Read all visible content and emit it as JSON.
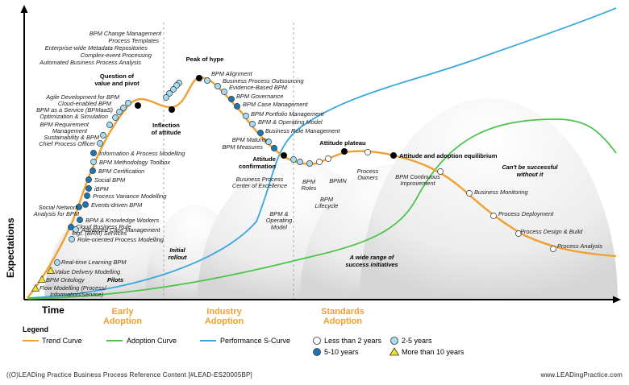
{
  "axes": {
    "y_label": "Expectations",
    "x_label": "Time"
  },
  "phases": [
    {
      "name": "phase-early",
      "lines": [
        "Early",
        "Adoption"
      ]
    },
    {
      "name": "phase-industry",
      "lines": [
        "Industry",
        "Adoption"
      ]
    },
    {
      "name": "phase-standards",
      "lines": [
        "Standards",
        "Adoption"
      ]
    }
  ],
  "milestones": {
    "question": [
      "Question of",
      "value and pivot"
    ],
    "inflection": [
      "Inflection",
      "of attitude"
    ],
    "peak": [
      "Peak of hype"
    ],
    "confirmation": [
      "Attitude",
      "confirmation"
    ],
    "plateau": [
      "Attitude plateau"
    ],
    "equilibrium": [
      "Attitude and adoption equilibrium"
    ]
  },
  "areas": {
    "pilots": [
      "Pilots"
    ],
    "initial": [
      "Initial",
      "rollout"
    ],
    "range": [
      "A wide range of",
      "success initiatives"
    ],
    "cant": [
      "Can't be successful",
      "without it"
    ]
  },
  "items_left": [
    {
      "text": "BPM Change Management",
      "m": "mid"
    },
    {
      "text": "Process Templates",
      "m": "mid"
    },
    {
      "text": "Enterprise-wide Metadata Repositories",
      "m": "mid"
    },
    {
      "text": "Complex-event Processing",
      "m": "mid"
    },
    {
      "text": "Automated Business Process Analysis",
      "m": "mid"
    },
    {
      "text": "Agile Development for BPM",
      "m": "mid"
    },
    {
      "text": "Cloud-enabled BPM",
      "m": "mid"
    },
    {
      "text": "BPM as a Service (BPMaaS)",
      "m": "mid"
    },
    {
      "text": "Optimization & Simulation",
      "m": "mid"
    },
    {
      "text": "BPM Requirement",
      "m": "mid"
    },
    {
      "text": "Management",
      "m": "mid"
    },
    {
      "text": "Sustainability & BPM",
      "m": "mid"
    },
    {
      "text": "Chief Process Officer",
      "m": "mid"
    },
    {
      "text": "Social Network",
      "m": "long"
    },
    {
      "text": "Analysis for BPM",
      "m": "long"
    },
    {
      "text": "Cloud Business Rule",
      "m": "long"
    },
    {
      "text": "Mgt. (BRM) Services",
      "m": "long"
    },
    {
      "text": "Real-time Learning BPM",
      "m": "mid"
    },
    {
      "text": "Value Delivery Modelling",
      "m": "old"
    },
    {
      "text": "BPM Ontology",
      "m": "old"
    },
    {
      "text": "Flow Modelling (Process/",
      "m": "old"
    },
    {
      "text": "Information/Service)",
      "m": "old"
    }
  ],
  "items_right": [
    {
      "text": "Information & Process Modelling",
      "m": "long"
    },
    {
      "text": "BPM Methodology Toolbox",
      "m": "mid"
    },
    {
      "text": "BPM Certification",
      "m": "long"
    },
    {
      "text": "Social BPM",
      "m": "long"
    },
    {
      "text": "iBPM",
      "m": "long"
    },
    {
      "text": "Process Variance Modelling",
      "m": "long"
    },
    {
      "text": "Events-driven BPM",
      "m": "long"
    },
    {
      "text": "BPM & Knowledge Workers",
      "m": "long"
    },
    {
      "text": "Advanced Case Management",
      "m": "mid"
    },
    {
      "text": "Role-oriented Process Modelling",
      "m": "mid"
    }
  ],
  "items_descent": [
    {
      "text": "BPM Alignment",
      "m": "mid"
    },
    {
      "text": "Business Process Outsourcing",
      "m": "mid"
    },
    {
      "text": "Evidence-Based BPM",
      "m": "mid"
    },
    {
      "text": "BPM Governance",
      "m": "long"
    },
    {
      "text": "BPM Case Management",
      "m": "long"
    },
    {
      "text": "BPM Portfolio Management",
      "m": "mid"
    },
    {
      "text": "BPM & Operating Model",
      "m": "mid"
    },
    {
      "text": "Business Rule Management",
      "m": "long"
    },
    {
      "text": "BPM Maturity",
      "m": "mid"
    },
    {
      "text": "BPM Measures",
      "m": "long"
    }
  ],
  "items_bottom": [
    {
      "lines": [
        "Business Process",
        "Center of Excellence"
      ],
      "m": "mid"
    },
    {
      "lines": [
        "BPM &",
        "Operating",
        "Model"
      ],
      "m": "mid"
    },
    {
      "lines": [
        "BPM",
        "Roles"
      ],
      "m": "mid"
    },
    {
      "lines": [
        "BPM",
        "Lifecycle"
      ],
      "m": "new"
    },
    {
      "lines": [
        "BPMN"
      ],
      "m": "new"
    },
    {
      "lines": [
        "Process",
        "Owners"
      ],
      "m": "new"
    }
  ],
  "items_tail": [
    {
      "lines": [
        "BPM Continuous",
        "Improvement"
      ],
      "m": "new"
    },
    {
      "lines": [
        "Business Monitoring"
      ],
      "m": "new"
    },
    {
      "lines": [
        "Process Deployment"
      ],
      "m": "new"
    },
    {
      "lines": [
        "Process Design & Build"
      ],
      "m": "new"
    },
    {
      "lines": [
        "Process Analysis"
      ],
      "m": "new"
    }
  ],
  "legend": {
    "title": "Legend",
    "trend": "Trend Curve",
    "adoption": "Adoption Curve",
    "performance": "Performance S-Curve",
    "new": "Less than 2 years",
    "mid": "2-5 years",
    "long": "5-10 years",
    "old": "More than 10 years"
  },
  "colors": {
    "trend": "#f0a030",
    "adoption": "#4cc44c",
    "performance": "#3aa8de",
    "marker_mid": "#a6dcf2",
    "marker_long": "#1c77b5",
    "marker_old": "#f3e31e",
    "phase_text": "#f0a030"
  },
  "footer": {
    "left": "((O)LEADing Practice Business Process Reference Content [#LEAD-ES20005BP]",
    "right": "www.LEADingPractice.com"
  }
}
